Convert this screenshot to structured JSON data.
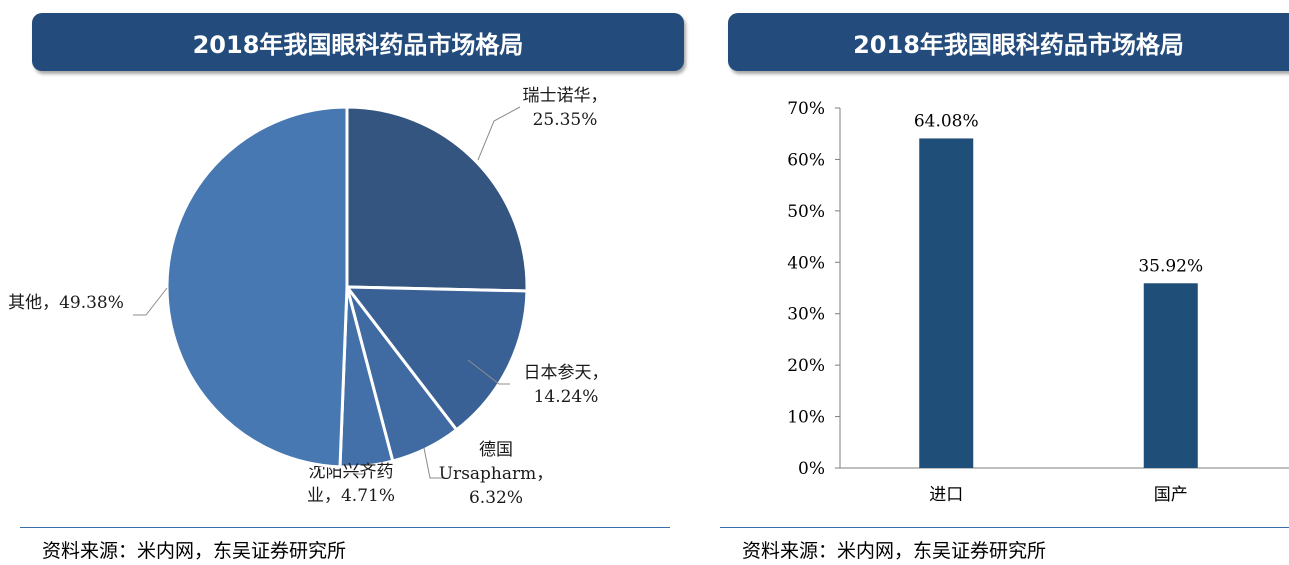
{
  "left_panel": {
    "title": "2018年我国眼科药品市场格局",
    "source": "资料来源：米内网，东吴证券研究所"
  },
  "right_panel": {
    "title": "2018年我国眼科药品市场格局",
    "source": "资料来源：米内网，东吴证券研究所"
  },
  "chart_data": [
    {
      "type": "pie",
      "title": "2018年我国眼科药品市场格局",
      "slices": [
        {
          "name": "瑞士诺华",
          "value": 25.35,
          "label_lines": [
            "瑞士诺华，",
            "25.35%"
          ],
          "color": "#33557f"
        },
        {
          "name": "日本参天",
          "value": 14.24,
          "label_lines": [
            "日本参天，",
            "14.24%"
          ],
          "color": "#3a6195"
        },
        {
          "name": "德国Ursapharm",
          "value": 6.32,
          "label_lines": [
            "德国",
            "Ursapharm，",
            "6.32%"
          ],
          "color": "#3f6aa2"
        },
        {
          "name": "沈阳兴齐药业",
          "value": 4.71,
          "label_lines": [
            "沈阳兴齐药",
            "业，4.71%"
          ],
          "color": "#4470aa"
        },
        {
          "name": "其他",
          "value": 49.38,
          "label_lines": [
            "其他，49.38%"
          ],
          "color": "#4878b2"
        }
      ]
    },
    {
      "type": "bar",
      "title": "2018年我国眼科药品市场格局",
      "categories": [
        "进口",
        "国产"
      ],
      "values": [
        64.08,
        35.92
      ],
      "data_labels": [
        "64.08%",
        "35.92%"
      ],
      "ylim": [
        0,
        70
      ],
      "yticks": [
        "0%",
        "10%",
        "20%",
        "30%",
        "40%",
        "50%",
        "60%",
        "70%"
      ],
      "bar_color": "#1f4e79",
      "xlabel": "",
      "ylabel": ""
    }
  ]
}
